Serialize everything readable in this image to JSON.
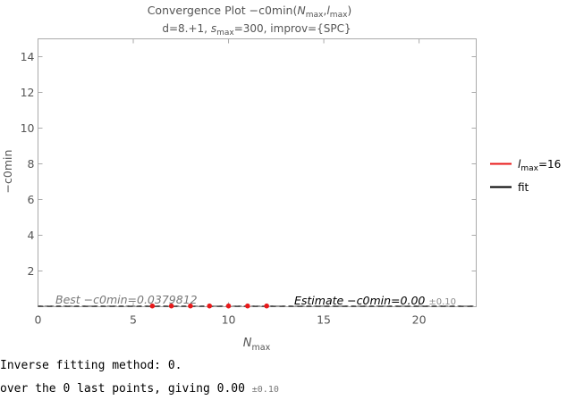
{
  "chart_data": {
    "type": "scatter",
    "title": {
      "prefix": "Convergence Plot −c0min(",
      "var_n": "N",
      "sub_n": "max",
      "sep": ",",
      "var_l": "l",
      "sub_l": "max",
      "suffix": ")"
    },
    "subtitle": {
      "part1": "d=8.+1, ",
      "var_s": "s",
      "sub_s": "max",
      "part2": "=300, improv={SPC}"
    },
    "ylabel": "−c0min",
    "xlabel": {
      "var": "N",
      "sub": "max"
    },
    "xlim": [
      0,
      23
    ],
    "ylim": [
      0,
      15
    ],
    "xticks": [
      0,
      5,
      10,
      15,
      20
    ],
    "yticks": [
      2,
      4,
      6,
      8,
      10,
      12,
      14
    ],
    "grid": false,
    "series": [
      {
        "legend_var": "l",
        "legend_sub": "max",
        "legend_value": "=16",
        "color": "#e8191a",
        "x": [
          6,
          7,
          8,
          9,
          10,
          11,
          12
        ],
        "y": [
          0.04,
          0.04,
          0.04,
          0.04,
          0.04,
          0.04,
          0.04
        ]
      }
    ],
    "fit": {
      "legend": "fit",
      "color": "#000000",
      "value": 0.0
    },
    "best_line": {
      "value": 0.0379812,
      "label": "Best −c0min=0.0379812",
      "color": "#777777"
    },
    "estimate": {
      "label": "Estimate −c0min=0.00",
      "error": "±0.10"
    },
    "legend_position": "right"
  },
  "output": {
    "line1": "Inverse fitting method: 0.",
    "line2": "over the 0 last points, giving 0.00",
    "line2_err": "±0.10"
  }
}
